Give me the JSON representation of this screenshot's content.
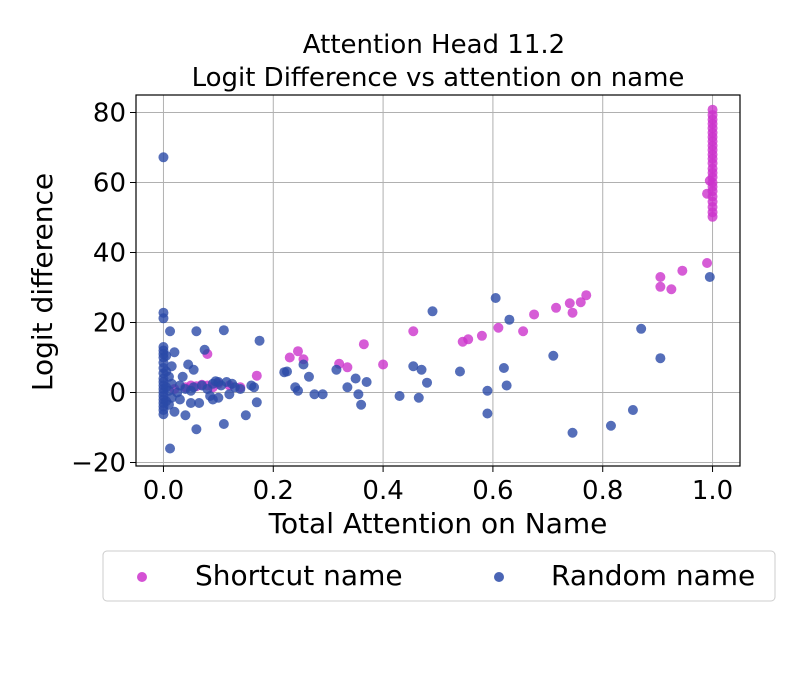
{
  "chart_data": {
    "type": "scatter",
    "title": "Attention Head 11.2",
    "subtitle": "Logit Difference vs attention on name",
    "xlabel": "Total Attention on Name",
    "ylabel": "Logit difference",
    "xlim": [
      -0.05,
      1.05
    ],
    "ylim": [
      -21,
      85
    ],
    "xticks": [
      0.0,
      0.2,
      0.4,
      0.6,
      0.8,
      1.0
    ],
    "xtick_labels": [
      "0.0",
      "0.2",
      "0.4",
      "0.6",
      "0.8",
      "1.0"
    ],
    "yticks": [
      -20,
      0,
      20,
      40,
      60,
      80
    ],
    "ytick_labels": [
      "−20",
      "0",
      "20",
      "40",
      "60",
      "80"
    ],
    "grid": true,
    "legend_position": "bottom-center",
    "series": [
      {
        "name": "Shortcut name",
        "color": "#cc33cc",
        "points": [
          [
            0.02,
            1.0
          ],
          [
            0.04,
            1.5
          ],
          [
            0.05,
            2.0
          ],
          [
            0.06,
            1.8
          ],
          [
            0.07,
            2.2
          ],
          [
            0.08,
            2.0
          ],
          [
            0.09,
            1.5
          ],
          [
            0.1,
            2.5
          ],
          [
            0.12,
            2.0
          ],
          [
            0.14,
            1.5
          ],
          [
            0.08,
            11.0
          ],
          [
            0.17,
            4.8
          ],
          [
            0.23,
            10.0
          ],
          [
            0.245,
            11.8
          ],
          [
            0.255,
            9.5
          ],
          [
            0.32,
            8.2
          ],
          [
            0.335,
            7.2
          ],
          [
            0.365,
            13.8
          ],
          [
            0.4,
            8.0
          ],
          [
            0.455,
            17.5
          ],
          [
            0.545,
            14.5
          ],
          [
            0.555,
            15.2
          ],
          [
            0.58,
            16.2
          ],
          [
            0.61,
            18.5
          ],
          [
            0.655,
            17.5
          ],
          [
            0.675,
            22.3
          ],
          [
            0.715,
            24.2
          ],
          [
            0.74,
            25.5
          ],
          [
            0.745,
            22.8
          ],
          [
            0.76,
            25.8
          ],
          [
            0.77,
            27.8
          ],
          [
            0.905,
            33.0
          ],
          [
            0.905,
            30.2
          ],
          [
            0.925,
            29.5
          ],
          [
            0.945,
            34.8
          ],
          [
            0.99,
            37.0
          ],
          [
            0.99,
            56.8
          ],
          [
            0.995,
            60.5
          ],
          [
            1.0,
            50.2
          ],
          [
            1.0,
            51.5
          ],
          [
            1.0,
            53.0
          ],
          [
            1.0,
            54.5
          ],
          [
            1.0,
            56.0
          ],
          [
            1.0,
            57.5
          ],
          [
            1.0,
            58.8
          ],
          [
            1.0,
            60.0
          ],
          [
            1.0,
            61.5
          ],
          [
            1.0,
            62.8
          ],
          [
            1.0,
            64.0
          ],
          [
            1.0,
            65.5
          ],
          [
            1.0,
            66.8
          ],
          [
            1.0,
            68.0
          ],
          [
            1.0,
            69.3
          ],
          [
            1.0,
            70.5
          ],
          [
            1.0,
            71.8
          ],
          [
            1.0,
            73.0
          ],
          [
            1.0,
            74.2
          ],
          [
            1.0,
            75.5
          ],
          [
            1.0,
            76.8
          ],
          [
            1.0,
            78.0
          ],
          [
            1.0,
            79.3
          ],
          [
            1.0,
            80.8
          ]
        ]
      },
      {
        "name": "Random name",
        "color": "#2a4aa8",
        "points": [
          [
            0.0,
            67.2
          ],
          [
            0.0,
            22.8
          ],
          [
            0.0,
            21.2
          ],
          [
            0.0,
            13.0
          ],
          [
            0.0,
            12.0
          ],
          [
            0.0,
            11.0
          ],
          [
            0.0,
            10.0
          ],
          [
            0.0,
            8.5
          ],
          [
            0.0,
            7.0
          ],
          [
            0.0,
            5.5
          ],
          [
            0.0,
            4.0
          ],
          [
            0.0,
            3.0
          ],
          [
            0.0,
            2.0
          ],
          [
            0.0,
            1.0
          ],
          [
            0.0,
            0.0
          ],
          [
            0.0,
            -1.0
          ],
          [
            0.0,
            -2.0
          ],
          [
            0.0,
            -3.0
          ],
          [
            0.0,
            -4.0
          ],
          [
            0.0,
            -5.0
          ],
          [
            0.0,
            -6.2
          ],
          [
            0.005,
            10.5
          ],
          [
            0.005,
            6.0
          ],
          [
            0.005,
            1.5
          ],
          [
            0.005,
            -2.5
          ],
          [
            0.01,
            4.5
          ],
          [
            0.01,
            0.5
          ],
          [
            0.01,
            -3.5
          ],
          [
            0.012,
            17.5
          ],
          [
            0.012,
            -16.0
          ],
          [
            0.015,
            7.5
          ],
          [
            0.015,
            2.5
          ],
          [
            0.015,
            -1.5
          ],
          [
            0.02,
            11.5
          ],
          [
            0.02,
            -5.5
          ],
          [
            0.025,
            0.0
          ],
          [
            0.03,
            2.0
          ],
          [
            0.03,
            -2.0
          ],
          [
            0.035,
            4.5
          ],
          [
            0.04,
            1.0
          ],
          [
            0.04,
            -6.5
          ],
          [
            0.045,
            8.0
          ],
          [
            0.05,
            0.5
          ],
          [
            0.05,
            -3.0
          ],
          [
            0.055,
            6.5
          ],
          [
            0.055,
            1.5
          ],
          [
            0.06,
            17.5
          ],
          [
            0.06,
            -10.5
          ],
          [
            0.065,
            -3.0
          ],
          [
            0.07,
            2.0
          ],
          [
            0.075,
            12.2
          ],
          [
            0.08,
            1.0
          ],
          [
            0.085,
            -1.0
          ],
          [
            0.09,
            2.5
          ],
          [
            0.09,
            -2.0
          ],
          [
            0.095,
            3.2
          ],
          [
            0.1,
            -1.5
          ],
          [
            0.1,
            3.0
          ],
          [
            0.105,
            2.0
          ],
          [
            0.11,
            -9.0
          ],
          [
            0.11,
            17.8
          ],
          [
            0.115,
            3.0
          ],
          [
            0.12,
            -0.5
          ],
          [
            0.125,
            2.5
          ],
          [
            0.13,
            1.5
          ],
          [
            0.14,
            1.0
          ],
          [
            0.15,
            -6.5
          ],
          [
            0.16,
            2.0
          ],
          [
            0.165,
            1.5
          ],
          [
            0.17,
            -2.8
          ],
          [
            0.175,
            14.8
          ],
          [
            0.22,
            5.8
          ],
          [
            0.225,
            6.0
          ],
          [
            0.24,
            1.5
          ],
          [
            0.245,
            0.5
          ],
          [
            0.255,
            8.0
          ],
          [
            0.265,
            4.5
          ],
          [
            0.275,
            -0.5
          ],
          [
            0.29,
            -0.5
          ],
          [
            0.315,
            6.5
          ],
          [
            0.335,
            1.5
          ],
          [
            0.35,
            4.0
          ],
          [
            0.355,
            -0.5
          ],
          [
            0.36,
            -3.5
          ],
          [
            0.37,
            3.0
          ],
          [
            0.43,
            -1.0
          ],
          [
            0.455,
            7.5
          ],
          [
            0.465,
            -1.5
          ],
          [
            0.47,
            6.5
          ],
          [
            0.48,
            2.8
          ],
          [
            0.49,
            23.2
          ],
          [
            0.54,
            6.0
          ],
          [
            0.59,
            0.5
          ],
          [
            0.59,
            -6.0
          ],
          [
            0.605,
            27.0
          ],
          [
            0.62,
            7.0
          ],
          [
            0.625,
            2.0
          ],
          [
            0.63,
            20.8
          ],
          [
            0.71,
            10.5
          ],
          [
            0.745,
            -11.5
          ],
          [
            0.815,
            -9.5
          ],
          [
            0.855,
            -5.0
          ],
          [
            0.87,
            18.2
          ],
          [
            0.905,
            9.8
          ],
          [
            0.995,
            33.0
          ]
        ]
      }
    ]
  }
}
